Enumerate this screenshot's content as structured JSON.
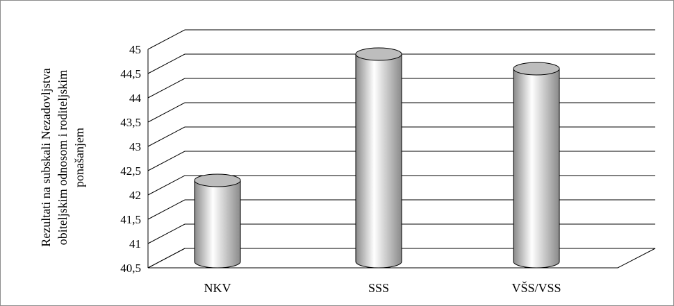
{
  "chart_data": {
    "type": "bar",
    "style": "3d-cylinder",
    "categories": [
      "NKV",
      "SSS",
      "VŠS/VSS"
    ],
    "values": [
      42.1,
      44.7,
      44.4
    ],
    "ylim": [
      40.5,
      45
    ],
    "yticks": [
      "40,5",
      "41",
      "41,5",
      "42",
      "42,5",
      "43",
      "43,5",
      "44",
      "44,5",
      "45"
    ],
    "ylabel_lines": [
      "Rezultati na subskali Nezadovljstva",
      "obiteljskim odnosom i roditeljskim",
      "ponašanjem"
    ],
    "xlabel": "",
    "title": "",
    "grid": true,
    "legend": "none",
    "colors": {
      "bar_fill_light": "#ffffff",
      "bar_fill_dark": "#8a8a8a",
      "bar_top": "#bdbdbd",
      "gridline": "#000000",
      "frame_border": "#8c8c8c"
    }
  }
}
